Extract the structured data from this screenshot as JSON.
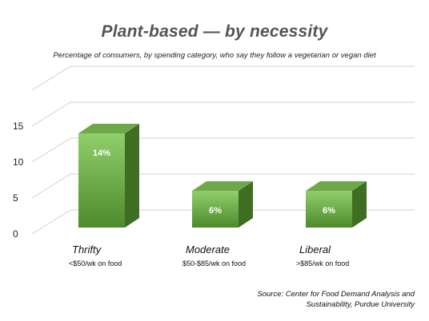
{
  "header": {
    "title": "Plant-based — by necessity",
    "subtitle": "Percentage of consumers, by spending category, who say they follow a vegetarian or vegan diet"
  },
  "footer": {
    "source": "Source: Center for Food Demand Analysis and\nSustainability, Purdue University"
  },
  "colors": {
    "bar_front_top": "#8fcf6a",
    "bar_front_bottom": "#4f8a2c",
    "bar_side": "#3e6e22",
    "bar_top": "#6fa84a",
    "grid": "#d0d0d0"
  },
  "chart_data": {
    "type": "bar",
    "categories": [
      "Thrifty",
      "Moderate",
      "Liberal"
    ],
    "category_sublabels": [
      "<$50/wk on food",
      "$50-$85/wk on food",
      ">$85/wk on food"
    ],
    "values": [
      14,
      6,
      6
    ],
    "data_labels": [
      "14%",
      "6%",
      "6%"
    ],
    "yticks": [
      0,
      5,
      10,
      15
    ],
    "ylim": [
      0,
      20
    ],
    "grid": true,
    "style": "3d"
  }
}
